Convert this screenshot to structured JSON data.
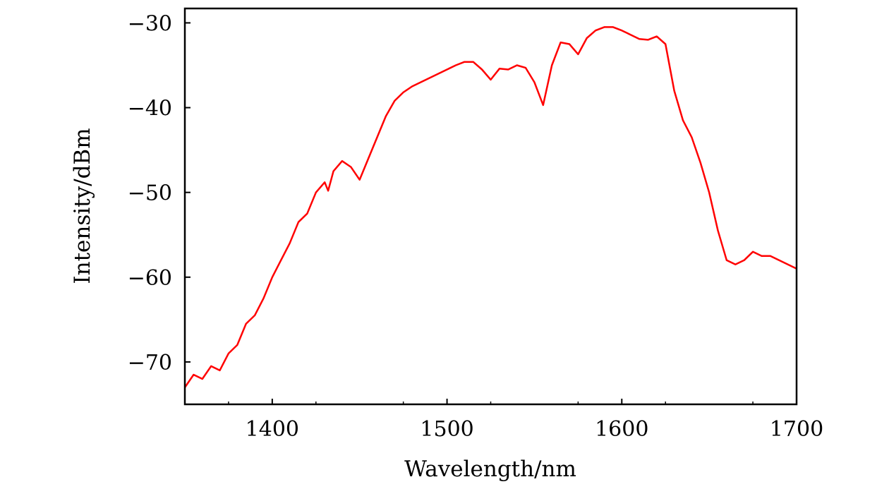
{
  "chart_data": {
    "type": "line",
    "title": "",
    "xlabel": "Wavelength/nm",
    "ylabel": "Intensity/dBm",
    "xlim": [
      1350,
      1700
    ],
    "ylim": [
      -75,
      -28.3
    ],
    "xticks": [
      1400,
      1500,
      1600,
      1700
    ],
    "xtick_labels": [
      "1400",
      "1500",
      "1600",
      "1700"
    ],
    "yticks": [
      -30,
      -40,
      -50,
      -60,
      -70
    ],
    "ytick_labels": [
      "−30",
      "−40",
      "−50",
      "−60",
      "−70"
    ],
    "grid": false,
    "legend": "none",
    "line_color": "#ff0000",
    "series": [
      {
        "x": [
          1350,
          1355,
          1360,
          1365,
          1370,
          1375,
          1380,
          1385,
          1390,
          1395,
          1400,
          1405,
          1410,
          1415,
          1420,
          1425,
          1430,
          1432,
          1435,
          1440,
          1445,
          1450,
          1455,
          1460,
          1465,
          1470,
          1475,
          1480,
          1485,
          1490,
          1495,
          1500,
          1505,
          1510,
          1515,
          1520,
          1525,
          1530,
          1535,
          1540,
          1545,
          1550,
          1555,
          1560,
          1565,
          1570,
          1575,
          1580,
          1585,
          1590,
          1595,
          1600,
          1605,
          1610,
          1615,
          1620,
          1625,
          1630,
          1635,
          1640,
          1645,
          1650,
          1655,
          1660,
          1665,
          1670,
          1675,
          1680,
          1685,
          1690,
          1695,
          1700
        ],
        "y": [
          -73,
          -71.5,
          -72,
          -70.5,
          -71,
          -69,
          -68,
          -65.5,
          -64.5,
          -62.5,
          -60,
          -58,
          -56,
          -53.5,
          -52.5,
          -50,
          -48.8,
          -49.8,
          -47.5,
          -46.3,
          -47,
          -48.5,
          -46,
          -43.5,
          -41,
          -39.2,
          -38.2,
          -37.5,
          -37,
          -36.5,
          -36,
          -35.5,
          -35,
          -34.6,
          -34.6,
          -35.5,
          -36.7,
          -35.4,
          -35.5,
          -35,
          -35.3,
          -37,
          -39.7,
          -35,
          -32.3,
          -32.5,
          -33.7,
          -31.8,
          -30.9,
          -30.5,
          -30.5,
          -30.9,
          -31.4,
          -31.9,
          -32,
          -31.6,
          -32.5,
          -38,
          -41.5,
          -43.5,
          -46.5,
          -50,
          -54.5,
          -58,
          -58.5,
          -58,
          -57,
          -57.5,
          -57.5,
          -58,
          -58.5,
          -59
        ]
      }
    ]
  }
}
